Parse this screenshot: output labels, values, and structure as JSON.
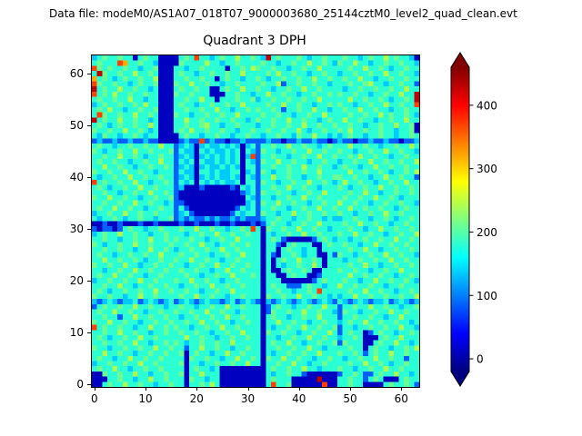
{
  "header": {
    "datafile": "Data file: modeM0/AS1A07_018T07_9000003680_25144cztM0_level2_quad_clean.evt"
  },
  "chart_data": {
    "type": "heatmap",
    "title": "Quadrant 3 DPH",
    "xlabel": "",
    "ylabel": "",
    "x_range": [
      -0.5,
      63.5
    ],
    "y_range": [
      -0.5,
      63.5
    ],
    "x_ticks": [
      0,
      10,
      20,
      30,
      40,
      50,
      60
    ],
    "y_ticks": [
      0,
      10,
      20,
      30,
      40,
      50,
      60
    ],
    "grid": "off",
    "colorbar": {
      "position": "right",
      "ticks": [
        0,
        100,
        200,
        300,
        400
      ],
      "vmin": -20,
      "vmax": 460,
      "extend": "both"
    },
    "colormap": {
      "name": "jet",
      "stops": [
        {
          "t": 0.0,
          "color": "#000080"
        },
        {
          "t": 0.125,
          "color": "#0000ff"
        },
        {
          "t": 0.375,
          "color": "#00ffff"
        },
        {
          "t": 0.625,
          "color": "#ffff00"
        },
        {
          "t": 0.875,
          "color": "#ff0000"
        },
        {
          "t": 1.0,
          "color": "#800000"
        }
      ]
    },
    "palette": {
      "d": 10,
      "b": 85,
      "m": 135,
      "c": 180,
      "g": 210,
      "G": 240,
      "y": 320,
      "o": 370,
      "r": 430
    },
    "row_order": "first row = y63 (top), last row = y0 (bottom); chars map x=0..63 via palette (counts)",
    "rows": [
      "mcgccgccdcgccddddcgcoccmcgccGccgcmrcgcccgcmccgcccgccmcgccGcgccmd",
      "cgcccoyccgccmddddgccccGccmccgccccgccmccgccGccgcmgccGccmccgccgccm",
      "ogcgccgccmccgdddccmccgccccdccgcGgccgccmccgccGcccccgccGccgcmccgcc",
      "crgccgccGccgcdddcgccmccgccgccGccccgcGccgccmccgccmccgccgccGccgccm",
      "ycgcmcgccgccGdddccgccgccdcgccmccgcmccgccgccGccgccgccGccmccgccgcc",
      "ogccgccmcgccgdddgccGccgccmccgccccgccGbccgccgccmcccgccgGccmccgccb",
      "rcgccGccgccmcdddcgccgccddcgccGccgccmccgccGccgccccmccgccgccgccGcc",
      "ocgcGccgccgccdddgccgcccdddccgccmccGccgccmccgccgcgccgccmccgccGccr",
      "cgccgccGccmccdddccgccGccdcccgccgmccgccgccgccGcccccGccgccgcmccgcr",
      "mcgccgccgcGccdddcgccmccgccgccGccccgccGccgccmccgcgccmccgccGccgcco",
      "cgcGccmccgccgdddccgccgccGccmccgcgccgcbccgccGccmccgccGccgccmccgcc",
      "cogccgccGccgcdddgccmccgccgccGccccgccgccmccgccGccccgccgccGcgccgcm",
      "rcgccGccgccmcdddccGccgccgccgccmcgccgccGccgccmcgccGccgccmccgccGcc",
      "cgcmcgccgccGcdddccgccgGccmccgcccmccgccgccGccgccgccgccmccgccGccgd",
      "gccgccGccgcmcdddcgcGccgccgccmccgccgccgccGcmccgccgcGccgccgccmccgd",
      "cmgccmccgcmccddddcgccmccgccmccgccmccgccmgccGccmcmcgccmccgccmccgc",
      "bmbbmbbmbbmbbddddbmbbobmbbdbbmbbbbmbbdbbmbbmbbdbmbbdbbmbbmbbdbbm",
      "cgccmccgccgccGccbmcmdmcmmcmcmdmcbccgccGccgccmcgcccGccgccmccgccGc",
      "gcmccgccGccgcccgbcmmdcmcmmcmcdcmbgccmccgccGccgccgccmccgccGccgccm",
      "ccgccGccgcmccgccbmcmdmcmcmcmcdmobccgccmccgccGccgccgcGccgccmccgcc",
      "cgccgccmccgccGccbcmcdcmmcmcmcdcmbgccGccgccmccgccmccgccGccgccgccG",
      "ccGccgccmccgccgcbmcmdmcmmcmcmdccbccgccgccGccgccmcgccmccGccgccgcc",
      "gccgccGccgccmcccbcmmdccmcmmccdmcbgcmccgccgccGcccccGccgccgcmccgcG",
      "cmccgccGccgccgccbmcmdmcmcmmcmdcmbccGccgccmccgccggccgccmccGccgccb",
      "ocgccgccGccmccgcbcmcdcmcmcmmcdccbgccmccgccGccgcmcGccgccmccgccGcc",
      "cgcmccgccGccgcccbmdddbdddddbdcmcbccgccGccgccmcccgcmccgccGccgccgc",
      "ccgccmccgccGccgcbddddddddddddbmcbgccgccmccgccGccccgccGccmccgccgc",
      "gccGccgccmccgccgbdddddddddddddcmbccmccgccGccgccccgccgccGccgcmccc",
      "ccgccgccGccgccmcbbddddddddddddmcbgccGccgccmccgccGccgccmccgccgccm",
      "cgccGccgccmccgccbcbdddddddddbcmcbccgccmccgccGccgccGccgccgccmcgcc",
      "mccgccGccgccgcccbmcbdddddddbcmccbgccmccGccgccgccgccmccgccGccgccc",
      "cmccgcmccgccmccgbmbmbbmbmbbmbmbbbmccgccmccgccmcmmccgccmccgcmccgc",
      "ddbddbdddbddbddddbddbdddbddbdddbdbcgccmccgccGccccgccGccgccmccgcc",
      "bdbbdbcgccmccgcccgccGccgccmccgcocdgccgccGccgccmcccgccmccGccgccgc",
      "mcgccGccgccmccgcccmccgccGccgccgccdcmccgccGccgcccgccGccgccmccgccG",
      "ccgccmccgccGccgcgccgccmccgccGccccdcgcbdddddbcgcmccmccgccgccGccgc",
      "gcmccgccGccgcccgccgccGccmccgccgccdccbdcgcccddcgccgccmccGccgccgcc",
      "ccgccgccmccGccgcmccgccgccGccgccccdccdcgccmccdcccccgccGccmccgccgc",
      "cgccmccgccgccGcccgccgccmccgccGcccdcbdccgcmccddcbgccmccgccGccgccm",
      "ccGccgccgcmccgccgccGccgccmccgccccdcdcgccGccgcdcccmccgccgccGccgcc",
      "gccgccGccmccgccgccmccgccGccgccgccdcdcmccgccGcdccccgccGccmccgccgc",
      "ccmccgccGccgccgccgccgccmccGccgcccdcddcgccgcddcccgccgccmccgccGccc",
      "cgccGccgccmccgccccgccmccgccGcccgcdccddcgccddbcccccGccgccgccmccgc",
      "mccgccgccGccgcccgccGccgccmccgccccdcccddddddbcgcccgccmccGccgccgcm",
      "ccgccGccmccgccgccmccgccGccgccgcccdcgccbbbcgccmccGccgccgccmccgccc",
      "cgcmccgccgccGccgccgccmccgccGcccccdccgccmccgcocccccgccGccgccmccgc",
      "gccgccmccGccgccccgccGccgccmccgcccdgccgccGccgccmcmccGccgccgccgccG",
      "mbmcmbmmcbmcmbmcbmcmbmcmmbmcbmcmbdmbmcmbmcmbmcmbcmbmcmbmmcbmcmbm",
      "bcgccgccGccgccmccgccmccgccGccgcccdbcgccmccgccGccbccgccGccgccmccg",
      "cgccGccgccmccgccgccgccGccgccmccccdbgccgccGccgccmbgccmccgccGccgcc",
      "ccgccbccGccgccgccmccgccgccGccgcccdcgccmccgccGcccbccgccgccmccGccc",
      "gccGccgccmccgccgccgccGccgccmccgccdccGccgccmccgccmcgccGccgccgccmc",
      "ocgccgccmccGccgcgccmccgccGccgccccdcmccgccGccgccgbccmccgccgccGccm",
      "ccgccGccgccmccgccgccgccmccgccGcccdgccgccmccgccGcbcgccdbcgccmccgc",
      "cgcmccgccGccgcccccGccgccmccgccgccdccmccgccGccgccmccgcdddcgccGccc",
      "ccgccgccGccmccgcgcmccgccgccGcccccdcgccGccmccgccgbgcccddcgccGccmc",
      "gccmccgccgccGccgccbccGccgccmccgccdccgccgccGccmccccgccdcgccmccgcG",
      "ccGccgccmccgccgccgdcgccmccGccgcccdcmccgccgccGcccgccgcbcgccGccgcc",
      "cgccmccGccgccgccccdgccgccmccGccgcdgccGccgccmccgccmccgccGccgccbcc",
      "mccgccgccGccgccccgdccmccgccgccGccdccgccGccmccgccccgccGccgcmccgcc",
      "cgccGccmccgccgccccdcgccmcdddddddddcgccgccGccmcccgccmccgccGccgccc",
      "ddgccgccGccmccgccgdccGcccdddddddddcmccgccbddddddbccgcbbcgccGccmc",
      "dddccgccmccGccgcccdgccmccdddddddddcgcccdddddrdddccgccbcgcdddcgcc",
      "ddcgccGccgccmccgccdccgcGcdddddddddcoccgddddddoddccgccddddcgccgcb"
    ]
  }
}
